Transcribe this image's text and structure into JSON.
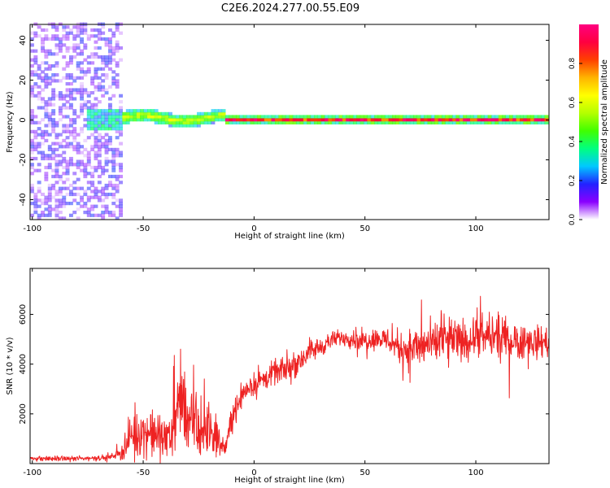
{
  "page": {
    "title": "C2E6.2024.277.00.55.E09"
  },
  "chart_data": [
    {
      "type": "heatmap",
      "title": "C2E6.2024.277.00.55.E09",
      "xlabel": "Height of straight line (km)",
      "ylabel": "Frequency (Hz)",
      "xlim": [
        -101,
        133
      ],
      "ylim": [
        -50,
        48
      ],
      "x_ticks": [
        -100,
        -50,
        0,
        50,
        100
      ],
      "y_ticks": [
        -40,
        -20,
        0,
        20,
        40
      ],
      "grid": false,
      "description_of_content": [],
      "regions": [
        {
          "x_range": [
            -101,
            -60
          ],
          "freq_range": [
            -50,
            48
          ],
          "amplitude": [
            0.0,
            0.2
          ],
          "pattern": "noise"
        },
        {
          "x_range": [
            -75,
            -60
          ],
          "freq_range": [
            -5,
            5
          ],
          "amplitude": [
            0.2,
            0.4
          ],
          "pattern": "blob"
        },
        {
          "x_range": [
            -60,
            -13
          ],
          "freq_range": [
            -4,
            6
          ],
          "amplitude": [
            0.3,
            0.6
          ],
          "pattern": "wavy-band"
        },
        {
          "x_range": [
            -13,
            133
          ],
          "freq_range": [
            -2,
            2
          ],
          "amplitude": [
            0.6,
            1.0
          ],
          "pattern": "line-at-0"
        }
      ],
      "colorbar": {
        "label": "Normalized spectral amplitude",
        "range": [
          0.0,
          1.0
        ],
        "ticks": [
          0.0,
          0.2,
          0.4,
          0.6,
          0.8
        ],
        "colors": [
          "#ffffff",
          "#8a00ff",
          "#2222ff",
          "#00c8ff",
          "#00ff80",
          "#40ff00",
          "#b4ff00",
          "#ffff00",
          "#ffb400",
          "#ff4000",
          "#ff0040",
          "#ff0080"
        ]
      }
    },
    {
      "type": "line",
      "xlabel": "Height of straight line (km)",
      "ylabel": "SNR (10 * v/v)",
      "xlim": [
        -101,
        133
      ],
      "ylim": [
        0,
        7850
      ],
      "x_ticks": [
        -100,
        -50,
        0,
        50,
        100
      ],
      "y_ticks": [
        2000,
        4000,
        6000
      ],
      "grid": false,
      "color": "#ee2222",
      "envelope": {
        "x": [
          -101,
          -80,
          -65,
          -60,
          -55,
          -50,
          -45,
          -40,
          -35,
          -32,
          -28,
          -25,
          -20,
          -15,
          -13,
          -10,
          -5,
          0,
          5,
          10,
          15,
          20,
          25,
          30,
          35,
          40,
          45,
          50,
          55,
          60,
          65,
          70,
          75,
          80,
          85,
          90,
          95,
          100,
          105,
          110,
          115,
          120,
          125,
          133
        ],
        "mean": [
          200,
          200,
          250,
          450,
          1100,
          1300,
          1150,
          1000,
          1900,
          2500,
          1400,
          1300,
          1300,
          800,
          600,
          1800,
          2900,
          3200,
          3400,
          3700,
          3800,
          4100,
          4500,
          4700,
          4950,
          5100,
          5000,
          4950,
          5050,
          5000,
          4700,
          4600,
          4700,
          4800,
          4900,
          5000,
          4950,
          5050,
          5100,
          5050,
          5000,
          4950,
          4900,
          4900
        ],
        "spread": [
          150,
          150,
          150,
          400,
          1500,
          1300,
          1400,
          1300,
          2200,
          2600,
          1800,
          1700,
          1600,
          700,
          400,
          900,
          700,
          700,
          700,
          700,
          700,
          800,
          700,
          600,
          500,
          500,
          550,
          600,
          650,
          700,
          1000,
          1200,
          1300,
          1300,
          1300,
          1200,
          1200,
          1300,
          1300,
          1300,
          1200,
          1100,
          1000,
          900
        ]
      }
    }
  ]
}
